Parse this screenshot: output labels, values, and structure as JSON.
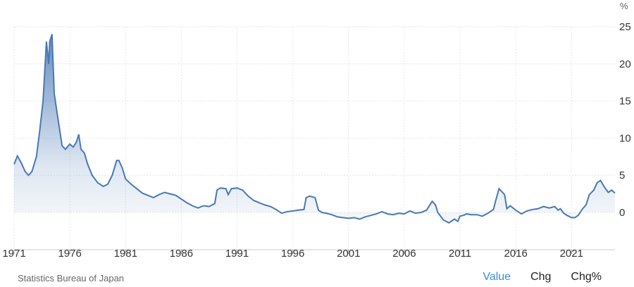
{
  "chart_data": {
    "type": "area",
    "unit": "%",
    "source": "Statistics Bureau of Japan",
    "ylim": [
      -2,
      26
    ],
    "xlim": [
      1971.0,
      2024.9
    ],
    "y_ticks": [
      0,
      5,
      10,
      15,
      20,
      25
    ],
    "x_ticks": [
      1971,
      1976,
      1981,
      1986,
      1991,
      1996,
      2001,
      2006,
      2011,
      2016,
      2021
    ],
    "grid": true,
    "line_color": "#4a78b5",
    "fill_color": "#4a78b5",
    "series": [
      {
        "x": [
          1971.0,
          1971.3,
          1971.6,
          1972.0,
          1972.3,
          1972.6,
          1973.0,
          1973.3,
          1973.6,
          1973.9,
          1974.1,
          1974.2,
          1974.4,
          1974.6,
          1974.8,
          1975.0,
          1975.3,
          1975.6,
          1976.0,
          1976.3,
          1976.6,
          1976.8,
          1977.0,
          1977.3,
          1977.6,
          1978.0,
          1978.5,
          1979.0,
          1979.4,
          1979.8,
          1980.2,
          1980.4,
          1980.7,
          1981.0,
          1981.5,
          1982.0,
          1982.5,
          1983.0,
          1983.5,
          1984.0,
          1984.5,
          1985.0,
          1985.5,
          1986.0,
          1986.5,
          1987.0,
          1987.5,
          1988.0,
          1988.5,
          1989.0,
          1989.2,
          1989.5,
          1990.0,
          1990.2,
          1990.5,
          1991.0,
          1991.5,
          1992.0,
          1992.5,
          1993.0,
          1993.5,
          1994.0,
          1994.5,
          1995.0,
          1995.5,
          1996.0,
          1996.5,
          1997.0,
          1997.2,
          1997.5,
          1998.0,
          1998.3,
          1998.6,
          1999.0,
          1999.5,
          2000.0,
          2000.5,
          2001.0,
          2001.5,
          2002.0,
          2002.5,
          2003.0,
          2003.5,
          2004.0,
          2004.5,
          2005.0,
          2005.5,
          2006.0,
          2006.5,
          2007.0,
          2007.5,
          2008.0,
          2008.5,
          2008.8,
          2009.0,
          2009.5,
          2010.0,
          2010.5,
          2010.8,
          2011.0,
          2011.3,
          2011.6,
          2012.0,
          2012.5,
          2013.0,
          2013.5,
          2014.0,
          2014.2,
          2014.5,
          2015.0,
          2015.2,
          2015.5,
          2016.0,
          2016.5,
          2017.0,
          2017.5,
          2018.0,
          2018.5,
          2019.0,
          2019.5,
          2019.8,
          2020.0,
          2020.3,
          2020.6,
          2021.0,
          2021.3,
          2021.6,
          2022.0,
          2022.3,
          2022.6,
          2023.0,
          2023.3,
          2023.6,
          2024.0,
          2024.3,
          2024.6,
          2024.9
        ],
        "y": [
          6.5,
          7.6,
          6.8,
          5.5,
          5.0,
          5.5,
          7.5,
          11.0,
          15.0,
          23.0,
          20.0,
          23.0,
          24.0,
          16.0,
          14.0,
          12.0,
          9.0,
          8.5,
          9.2,
          8.8,
          9.5,
          10.5,
          8.5,
          8.0,
          6.5,
          5.0,
          4.0,
          3.5,
          3.8,
          5.0,
          7.0,
          7.0,
          6.0,
          4.5,
          3.8,
          3.2,
          2.6,
          2.3,
          2.0,
          2.4,
          2.7,
          2.5,
          2.3,
          1.8,
          1.3,
          0.9,
          0.6,
          0.9,
          0.8,
          1.2,
          3.0,
          3.3,
          3.2,
          2.4,
          3.2,
          3.3,
          3.0,
          2.2,
          1.6,
          1.3,
          1.0,
          0.8,
          0.4,
          -0.1,
          0.1,
          0.2,
          0.3,
          0.4,
          2.0,
          2.2,
          2.0,
          0.3,
          0.0,
          -0.1,
          -0.3,
          -0.6,
          -0.7,
          -0.8,
          -0.7,
          -0.9,
          -0.6,
          -0.4,
          -0.2,
          0.1,
          -0.2,
          -0.3,
          -0.1,
          -0.2,
          0.2,
          -0.1,
          0.0,
          0.3,
          1.5,
          1.0,
          0.0,
          -1.0,
          -1.4,
          -0.9,
          -1.2,
          -0.5,
          -0.4,
          -0.2,
          -0.3,
          -0.3,
          -0.5,
          -0.1,
          0.4,
          1.6,
          3.2,
          2.4,
          0.5,
          0.9,
          0.3,
          -0.2,
          0.2,
          0.4,
          0.5,
          0.8,
          0.6,
          0.8,
          0.3,
          0.5,
          -0.1,
          -0.4,
          -0.7,
          -0.7,
          -0.4,
          0.5,
          1.0,
          2.4,
          3.0,
          4.0,
          4.3,
          3.3,
          2.7,
          3.0,
          2.6
        ]
      }
    ]
  },
  "tabs": {
    "value": "Value",
    "chg": "Chg",
    "chg_pct": "Chg%"
  }
}
